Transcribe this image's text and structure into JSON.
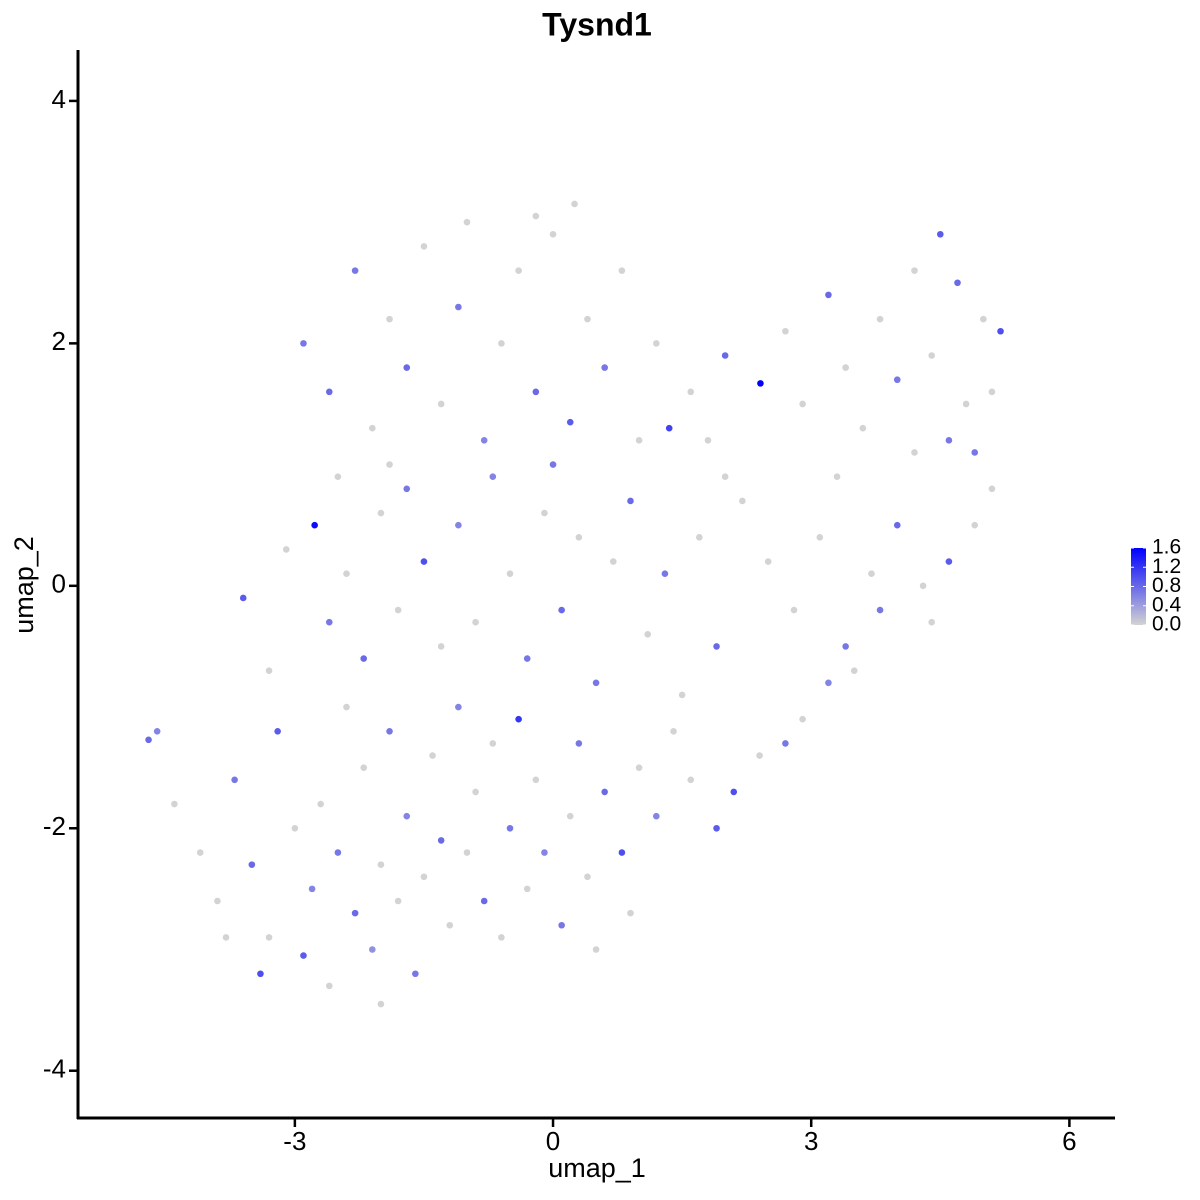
{
  "chart_data": {
    "type": "scatter",
    "title": "Tysnd1",
    "xlabel": "umap_1",
    "ylabel": "umap_2",
    "xlim": [
      -5.52,
      6.53
    ],
    "ylim": [
      -4.39,
      4.42
    ],
    "xticks": [
      -3,
      0,
      3,
      6
    ],
    "yticks": [
      -4,
      -2,
      0,
      2,
      4
    ],
    "color_low": "#d3d3d3",
    "color_high": "#0000ff",
    "clim": [
      0,
      1.6
    ],
    "cticks": [
      {
        "value": 0,
        "label": "0.0"
      },
      {
        "value": 0.4,
        "label": "0.4"
      },
      {
        "value": 0.8,
        "label": "0.8"
      },
      {
        "value": 1.2,
        "label": "1.2"
      },
      {
        "value": 1.6,
        "label": "1.6"
      }
    ],
    "x": [
      -4.1,
      -3.9,
      -3.7,
      -3.5,
      -3.3,
      -3.2,
      -3.0,
      -2.9,
      -2.8,
      -2.7,
      -2.6,
      -2.5,
      -2.4,
      -2.3,
      -2.2,
      -2.1,
      -2.0,
      -1.9,
      -1.8,
      -1.7,
      -1.6,
      -1.5,
      -1.4,
      -1.3,
      -1.2,
      -1.1,
      -1.0,
      -0.9,
      -0.8,
      -0.7,
      -0.6,
      -0.5,
      -0.4,
      -0.3,
      -0.2,
      -0.1,
      0.1,
      0.2,
      0.3,
      0.4,
      0.5,
      0.6,
      0.8,
      0.9,
      1.0,
      1.2,
      1.4,
      1.6,
      1.9,
      2.1,
      2.4,
      2.7,
      2.9,
      3.2,
      3.5,
      -4.7,
      -4.6,
      -4.4,
      -3.8,
      -3.4,
      -2.0,
      -3.6,
      -3.3,
      -3.1,
      -2.77,
      -2.6,
      -2.4,
      -2.2,
      -2.0,
      -1.8,
      -1.7,
      -1.5,
      -1.3,
      -1.1,
      -0.9,
      -0.7,
      -0.5,
      -0.3,
      -0.1,
      0.1,
      0.3,
      0.5,
      0.7,
      0.9,
      1.1,
      1.3,
      1.5,
      1.7,
      1.9,
      2.2,
      2.5,
      2.8,
      3.1,
      3.4,
      3.7,
      4.0,
      4.3,
      4.6,
      4.9,
      5.1,
      3.8,
      4.4,
      -2.9,
      -2.6,
      -2.3,
      -2.1,
      -1.9,
      -1.7,
      -1.5,
      -1.3,
      -1.1,
      -1.0,
      -0.8,
      -0.6,
      -0.4,
      -0.2,
      0.0,
      0.2,
      0.4,
      0.6,
      0.8,
      1.0,
      1.2,
      1.35,
      1.6,
      1.8,
      2.0,
      2.41,
      2.7,
      2.9,
      3.2,
      3.4,
      3.6,
      3.8,
      4.0,
      4.2,
      4.4,
      4.5,
      4.7,
      4.8,
      5.0,
      5.2,
      5.1,
      4.6,
      4.2,
      -0.2,
      0.25,
      -2.5,
      -1.9,
      0.0,
      2.0,
      3.3,
      4.9
    ],
    "y": [
      -2.2,
      -2.6,
      -1.6,
      -2.3,
      -2.9,
      -1.2,
      -2.0,
      -3.05,
      -2.5,
      -1.8,
      -3.3,
      -2.2,
      -1.0,
      -2.7,
      -1.5,
      -3.0,
      -2.3,
      -1.2,
      -2.6,
      -1.9,
      -3.2,
      -2.4,
      -1.4,
      -2.1,
      -2.8,
      -1.0,
      -2.2,
      -1.7,
      -2.6,
      -1.3,
      -2.9,
      -2.0,
      -1.1,
      -2.5,
      -1.6,
      -2.2,
      -2.8,
      -1.9,
      -1.3,
      -2.4,
      -3.0,
      -1.7,
      -2.2,
      -2.7,
      -1.5,
      -1.9,
      -1.2,
      -1.6,
      -2.0,
      -1.7,
      -1.4,
      -1.3,
      -1.1,
      -0.8,
      -0.7,
      -1.27,
      -1.2,
      -1.8,
      -2.9,
      -3.2,
      -3.45,
      -0.1,
      -0.7,
      0.3,
      0.5,
      -0.3,
      0.1,
      -0.6,
      0.6,
      -0.2,
      0.8,
      0.2,
      -0.5,
      0.5,
      -0.3,
      0.9,
      0.1,
      -0.6,
      0.6,
      -0.2,
      0.4,
      -0.8,
      0.2,
      0.7,
      -0.4,
      0.1,
      -0.9,
      0.4,
      -0.5,
      0.7,
      0.2,
      -0.2,
      0.4,
      -0.5,
      0.1,
      0.5,
      0.0,
      0.2,
      0.5,
      0.8,
      -0.2,
      -0.3,
      2.0,
      1.6,
      2.6,
      1.3,
      2.2,
      1.8,
      2.8,
      1.5,
      2.3,
      3.0,
      1.2,
      2.0,
      2.6,
      1.6,
      2.9,
      1.35,
      2.2,
      1.8,
      2.6,
      1.2,
      2.0,
      1.3,
      1.6,
      1.2,
      1.9,
      1.67,
      2.1,
      1.5,
      2.4,
      1.8,
      1.3,
      2.2,
      1.7,
      2.6,
      1.9,
      2.9,
      2.5,
      1.5,
      2.2,
      2.1,
      1.6,
      1.2,
      1.1,
      3.05,
      3.15,
      0.9,
      1.0,
      1.0,
      0.9,
      0.9,
      1.1
    ],
    "values": [
      0,
      0,
      0.7,
      0.8,
      0,
      0.9,
      0,
      0.9,
      0.6,
      0,
      0,
      0.7,
      0,
      0.8,
      0,
      0.5,
      0,
      0.7,
      0,
      0.6,
      0.7,
      0,
      0,
      0.8,
      0,
      0.6,
      0,
      0,
      0.8,
      0,
      0,
      0.7,
      1.2,
      0,
      0,
      0.6,
      0.7,
      0,
      0.7,
      0,
      0,
      0.8,
      1.0,
      0,
      0,
      0.6,
      0,
      0,
      0.9,
      1.0,
      0,
      0.7,
      0,
      0.6,
      0,
      0.8,
      0.6,
      0,
      0,
      1.0,
      0,
      0.9,
      0,
      0,
      1.5,
      0.7,
      0,
      0.8,
      0,
      0,
      0.7,
      1.0,
      0,
      0.6,
      0,
      0.6,
      0,
      0.7,
      0,
      0.8,
      0,
      0.7,
      0,
      0.8,
      0,
      0.7,
      0,
      0,
      0.8,
      0,
      0,
      0,
      0,
      0.7,
      0,
      0.8,
      0,
      0.9,
      0,
      0,
      0.7,
      0,
      0.7,
      0.8,
      0.7,
      0,
      0,
      0.8,
      0,
      0,
      0.7,
      0,
      0.6,
      0,
      0,
      0.8,
      0,
      0.9,
      0,
      0.7,
      0,
      0,
      0,
      1.1,
      0,
      0,
      0.8,
      1.6,
      0,
      0,
      0.8,
      0,
      0,
      0,
      0.7,
      0,
      0,
      0.9,
      0.8,
      0,
      0,
      1.0,
      0,
      0.7,
      0,
      0,
      0,
      0,
      0,
      0.7,
      0,
      0,
      0.7
    ]
  }
}
